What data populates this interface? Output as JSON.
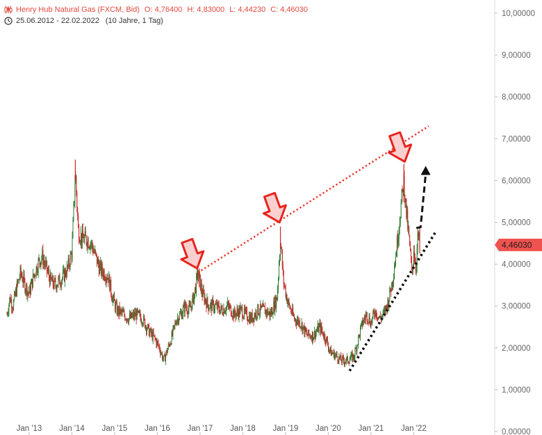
{
  "header": {
    "instrument": "Henry Hub Natural Gas (FXCM, Bid)",
    "ohlc": {
      "open_label": "O:",
      "open": "4,76400",
      "high_label": "H:",
      "high": "4,83000",
      "low_label": "L:",
      "low": "4,44230",
      "close_label": "C:",
      "close": "4,46030"
    },
    "date_range": "25.06.2012 - 22.02.2022",
    "span": "(10 Jahre, 1 Tag)",
    "instrument_icon": "candlestick-icon",
    "range_icon": "clock-icon"
  },
  "colors": {
    "up": "#2e7d32",
    "down": "#c62828",
    "resistance": "#e8352a",
    "support": "#111111",
    "arrow_fill": "#f9d0cf",
    "arrow_stroke": "#e8231c",
    "last_price_bg": "#ef5350"
  },
  "chart_data": {
    "type": "line",
    "title": "Henry Hub Natural Gas (FXCM, Bid)",
    "x_tick_labels": [
      "Jan '13",
      "Jan '14",
      "Jan '15",
      "Jan '16",
      "Jan '17",
      "Jan '18",
      "Jan '19",
      "Jan '20",
      "Jan '21",
      "Jan '22"
    ],
    "y_tick_labels": [
      "0,00000",
      "1,00000",
      "2,00000",
      "3,00000",
      "4,00000",
      "5,00000",
      "6,00000",
      "7,00000",
      "8,00000",
      "9,00000",
      "10,00000"
    ],
    "ylim": [
      0,
      10
    ],
    "xlim": [
      2012.48,
      2022.14
    ],
    "y_axis_position": "right",
    "grid": false,
    "last_price": 4.4603,
    "last_price_label": "4,46030",
    "series": [
      {
        "x": [
          2012.48,
          2012.55,
          2012.62,
          2012.7,
          2012.8,
          2012.9,
          2013.0,
          2013.1,
          2013.2,
          2013.3,
          2013.4,
          2013.5,
          2013.6,
          2013.7,
          2013.8,
          2013.9,
          2014.0,
          2014.08,
          2014.15,
          2014.25,
          2014.35,
          2014.45,
          2014.55,
          2014.65,
          2014.75,
          2014.85,
          2014.95,
          2015.05,
          2015.2,
          2015.35,
          2015.5,
          2015.65,
          2015.8,
          2015.95,
          2016.05,
          2016.15,
          2016.25,
          2016.35,
          2016.45,
          2016.55,
          2016.65,
          2016.75,
          2016.85,
          2016.95,
          2017.05,
          2017.2,
          2017.35,
          2017.5,
          2017.65,
          2017.8,
          2017.95,
          2018.05,
          2018.2,
          2018.35,
          2018.5,
          2018.65,
          2018.8,
          2018.88,
          2018.95,
          2019.05,
          2019.2,
          2019.35,
          2019.5,
          2019.65,
          2019.8,
          2019.95,
          2020.05,
          2020.2,
          2020.3,
          2020.45,
          2020.6,
          2020.7,
          2020.8,
          2020.9,
          2021.0,
          2021.1,
          2021.2,
          2021.3,
          2021.4,
          2021.5,
          2021.6,
          2021.7,
          2021.77,
          2021.82,
          2021.9,
          2021.96,
          2022.0,
          2022.05,
          2022.1,
          2022.14
        ],
        "y": [
          2.8,
          3.2,
          3.0,
          3.4,
          3.8,
          3.5,
          3.3,
          3.7,
          4.0,
          4.2,
          3.9,
          3.6,
          3.5,
          3.6,
          3.7,
          3.9,
          4.3,
          6.2,
          4.8,
          4.6,
          4.6,
          4.5,
          4.2,
          3.9,
          3.8,
          3.7,
          3.2,
          2.9,
          2.8,
          2.7,
          2.8,
          2.7,
          2.4,
          2.2,
          2.0,
          1.7,
          2.0,
          2.3,
          2.7,
          2.8,
          3.0,
          2.9,
          3.2,
          3.8,
          3.3,
          3.0,
          3.0,
          2.9,
          3.0,
          2.8,
          2.9,
          2.8,
          2.7,
          2.9,
          2.9,
          2.8,
          3.2,
          4.6,
          3.6,
          3.1,
          2.7,
          2.6,
          2.3,
          2.3,
          2.5,
          2.2,
          1.9,
          1.8,
          1.7,
          1.7,
          1.8,
          2.2,
          2.6,
          2.8,
          2.6,
          2.9,
          2.7,
          2.8,
          3.1,
          3.6,
          4.4,
          5.4,
          6.0,
          5.3,
          4.5,
          3.7,
          4.4,
          3.9,
          4.7,
          4.46
        ]
      }
    ],
    "annotations": [
      {
        "type": "trendline",
        "style": "dotted",
        "label": "resistance",
        "color": "red",
        "from": [
          2016.95,
          3.8
        ],
        "to": [
          2022.35,
          7.3
        ]
      },
      {
        "type": "trendline",
        "style": "dotted",
        "label": "support",
        "color": "black",
        "from": [
          2020.5,
          1.45
        ],
        "to": [
          2022.5,
          4.75
        ]
      },
      {
        "type": "arrow",
        "style": "dashed",
        "direction": "up",
        "color": "black",
        "from": [
          2022.16,
          4.9
        ],
        "to": [
          2022.28,
          6.35
        ]
      },
      {
        "type": "marker",
        "shape": "down-arrow",
        "at": [
          2016.93,
          3.9
        ]
      },
      {
        "type": "marker",
        "shape": "down-arrow",
        "at": [
          2018.86,
          5.0
        ]
      },
      {
        "type": "marker",
        "shape": "down-arrow",
        "at": [
          2021.79,
          6.45
        ]
      }
    ]
  }
}
